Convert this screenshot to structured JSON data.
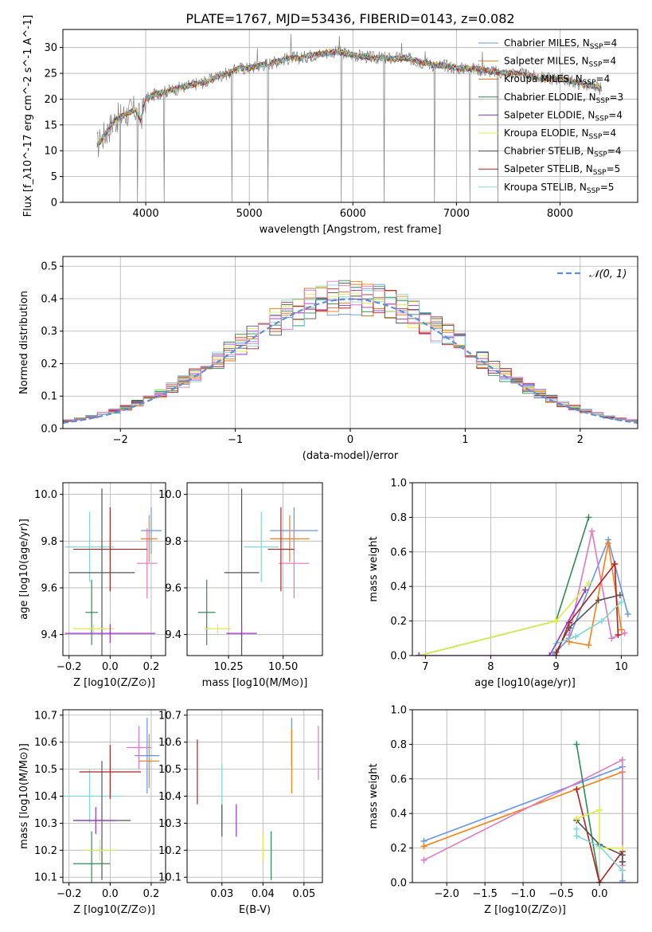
{
  "title": "PLATE=1767, MJD=53436, FIBERID=0143, z=0.082",
  "colors": {
    "chabrier_miles": "#6495ED",
    "salpeter_miles": "#FF7F0E",
    "kroupa_miles": "#D2691E",
    "chabrier_elodie": "#2E8B57",
    "salpeter_elodie": "#9932CC",
    "kroupa_elodie": "#DDEE44",
    "chabrier_stelib": "#555555",
    "salpeter_stelib": "#B22222",
    "kroupa_stelib": "#7FD8D8",
    "data": "#808080",
    "normal": "#5B8FD9",
    "pink": "#E377C2"
  },
  "chart_data": [
    {
      "id": "spectrum",
      "type": "line",
      "title": "PLATE=1767, MJD=53436, FIBERID=0143, z=0.082",
      "xlabel": "wavelength [Angstrom, rest frame]",
      "ylabel": "Flux [f_λ10^-17 erg cm^-2 s^-1 A^-1]",
      "xlim": [
        3200,
        8750
      ],
      "ylim": [
        0,
        33.5
      ],
      "xticks": [
        4000,
        5000,
        6000,
        7000,
        8000
      ],
      "yticks": [
        0,
        5,
        10,
        15,
        20,
        25,
        30
      ],
      "legend_position": "upper right",
      "legend": [
        {
          "name": "Chabrier MILES",
          "nssp": "4",
          "color_key": "chabrier_miles"
        },
        {
          "name": "Salpeter MILES",
          "nssp": "4",
          "color_key": "salpeter_miles"
        },
        {
          "name": "Kroupa MILES",
          "nssp": "4",
          "color_key": "kroupa_miles"
        },
        {
          "name": "Chabrier ELODIE",
          "nssp": "3",
          "color_key": "chabrier_elodie"
        },
        {
          "name": "Salpeter ELODIE",
          "nssp": "4",
          "color_key": "salpeter_elodie"
        },
        {
          "name": "Kroupa ELODIE",
          "nssp": "4",
          "color_key": "kroupa_elodie"
        },
        {
          "name": "Chabrier STELIB",
          "nssp": "4",
          "color_key": "chabrier_stelib"
        },
        {
          "name": "Salpeter STELIB",
          "nssp": "5",
          "color_key": "salpeter_stelib"
        },
        {
          "name": "Kroupa STELIB",
          "nssp": "5",
          "color_key": "kroupa_stelib"
        }
      ],
      "continuum": [
        [
          3530,
          11
        ],
        [
          3600,
          13
        ],
        [
          3700,
          16
        ],
        [
          3800,
          17
        ],
        [
          3900,
          18
        ],
        [
          3950,
          16
        ],
        [
          4000,
          20
        ],
        [
          4100,
          21
        ],
        [
          4200,
          21.5
        ],
        [
          4300,
          22
        ],
        [
          4400,
          22.5
        ],
        [
          4500,
          23
        ],
        [
          4600,
          23.5
        ],
        [
          4700,
          24.5
        ],
        [
          4800,
          25
        ],
        [
          4900,
          26
        ],
        [
          5000,
          26
        ],
        [
          5100,
          26.5
        ],
        [
          5200,
          27
        ],
        [
          5300,
          27.5
        ],
        [
          5400,
          28
        ],
        [
          5500,
          28
        ],
        [
          5600,
          28.5
        ],
        [
          5700,
          28.8
        ],
        [
          5800,
          29.2
        ],
        [
          5900,
          29
        ],
        [
          6000,
          28.5
        ],
        [
          6100,
          28.3
        ],
        [
          6200,
          28
        ],
        [
          6300,
          28
        ],
        [
          6400,
          27.8
        ],
        [
          6500,
          28
        ],
        [
          6600,
          27.5
        ],
        [
          6700,
          27
        ],
        [
          6800,
          26.5
        ],
        [
          6900,
          26.5
        ],
        [
          7000,
          26
        ],
        [
          7100,
          26
        ],
        [
          7200,
          25.8
        ],
        [
          7300,
          25.5
        ],
        [
          7400,
          25.2
        ],
        [
          7500,
          25
        ],
        [
          7600,
          25
        ],
        [
          7700,
          24.5
        ],
        [
          7800,
          24.2
        ],
        [
          7900,
          24
        ],
        [
          8000,
          24
        ],
        [
          8100,
          23.5
        ],
        [
          8200,
          23
        ],
        [
          8300,
          22.5
        ],
        [
          8400,
          22
        ]
      ],
      "spikes_down": [
        3510,
        3750,
        3920,
        4180,
        4830,
        5180,
        5890,
        6300,
        6790,
        7130,
        7400
      ],
      "spikes_up": [
        3560,
        5080,
        5400,
        5870,
        6470,
        6700,
        7250
      ]
    },
    {
      "id": "residuals",
      "type": "bar",
      "xlabel": "(data-model)/error",
      "ylabel": "Normed distribution",
      "xlim": [
        -2.5,
        2.5
      ],
      "ylim": [
        0,
        0.53
      ],
      "xticks": [
        -2,
        -1,
        0,
        1,
        2
      ],
      "yticks": [
        0.0,
        0.1,
        0.2,
        0.3,
        0.4,
        0.5
      ],
      "legend_position": "upper right",
      "legend": [
        {
          "name": "N(0,1)",
          "style": "dashed",
          "color_key": "normal"
        }
      ],
      "bin_width": 0.1
    },
    {
      "id": "age_vs_Z",
      "type": "scatter",
      "xlabel": "Z [log10(Z/Z⊙)]",
      "ylabel": "age  [log10(age/yr)]",
      "xlim": [
        -0.23,
        0.27
      ],
      "ylim": [
        9.31,
        10.05
      ],
      "xticks": [
        -0.2,
        0.0,
        0.2
      ],
      "yticks": [
        9.4,
        9.6,
        9.8,
        10.0
      ],
      "errorbars": [
        {
          "color_key": "chabrier_miles",
          "x": 0.2,
          "xerr": 0.05,
          "y": 9.845,
          "yerr": 0.1
        },
        {
          "color_key": "salpeter_miles",
          "x": 0.19,
          "xerr": 0.04,
          "y": 9.81,
          "yerr": 0.1
        },
        {
          "color_key": "pink",
          "x": 0.18,
          "xerr": 0.05,
          "y": 9.705,
          "yerr": 0.15
        },
        {
          "color_key": "kroupa_stelib",
          "x": -0.1,
          "xerr": 0.12,
          "y": 9.775,
          "yerr": 0.15
        },
        {
          "color_key": "salpeter_stelib",
          "x": 0.0,
          "xerr": 0.18,
          "y": 9.765,
          "yerr": 0.18
        },
        {
          "color_key": "chabrier_stelib",
          "x": -0.04,
          "xerr": 0.16,
          "y": 9.665,
          "yerr": 0.36
        },
        {
          "color_key": "chabrier_elodie",
          "x": -0.09,
          "xerr": 0.03,
          "y": 9.495,
          "yerr": 0.14
        },
        {
          "color_key": "kroupa_elodie",
          "x": -0.08,
          "xerr": 0.1,
          "y": 9.425,
          "yerr": 0.02
        },
        {
          "color_key": "salpeter_elodie",
          "x": 0.0,
          "xerr": 0.22,
          "y": 9.405,
          "yerr": 0.04
        }
      ]
    },
    {
      "id": "age_vs_mass",
      "type": "scatter",
      "xlabel": "mass [log10(M/M⊙)]",
      "ylabel": "",
      "xlim": [
        10.06,
        10.68
      ],
      "ylim": [
        9.31,
        10.05
      ],
      "xticks": [
        10.25,
        10.5
      ],
      "yticks": [
        9.4,
        9.6,
        9.8,
        10.0
      ],
      "errorbars": [
        {
          "color_key": "chabrier_miles",
          "x": 10.55,
          "xerr": 0.11,
          "y": 9.845,
          "yerr": 0.1
        },
        {
          "color_key": "salpeter_miles",
          "x": 10.53,
          "xerr": 0.09,
          "y": 9.81,
          "yerr": 0.1
        },
        {
          "color_key": "pink",
          "x": 10.55,
          "xerr": 0.07,
          "y": 9.705,
          "yerr": 0.15
        },
        {
          "color_key": "kroupa_stelib",
          "x": 10.4,
          "xerr": 0.08,
          "y": 9.775,
          "yerr": 0.15
        },
        {
          "color_key": "salpeter_stelib",
          "x": 10.49,
          "xerr": 0.06,
          "y": 9.765,
          "yerr": 0.18
        },
        {
          "color_key": "chabrier_stelib",
          "x": 10.31,
          "xerr": 0.08,
          "y": 9.665,
          "yerr": 0.36
        },
        {
          "color_key": "chabrier_elodie",
          "x": 10.15,
          "xerr": 0.04,
          "y": 9.495,
          "yerr": 0.14
        },
        {
          "color_key": "kroupa_elodie",
          "x": 10.2,
          "xerr": 0.06,
          "y": 9.425,
          "yerr": 0.02
        },
        {
          "color_key": "salpeter_elodie",
          "x": 10.31,
          "xerr": 0.07,
          "y": 9.405,
          "yerr": 0.04
        }
      ]
    },
    {
      "id": "weight_vs_age",
      "type": "line",
      "xlabel": "age  [log10(age/yr)]",
      "ylabel": "mass weight",
      "xlim": [
        6.8,
        10.25
      ],
      "ylim": [
        0,
        1.0
      ],
      "xticks": [
        7,
        8,
        9,
        10
      ],
      "yticks": [
        0.0,
        0.2,
        0.4,
        0.6,
        0.8,
        1.0
      ],
      "series": [
        {
          "color_key": "chabrier_elodie",
          "points": [
            [
              6.9,
              0.0
            ],
            [
              9.0,
              0.2
            ],
            [
              9.5,
              0.8
            ]
          ]
        },
        {
          "color_key": "chabrier_miles",
          "points": [
            [
              8.95,
              0.0
            ],
            [
              9.2,
              0.1
            ],
            [
              9.8,
              0.67
            ],
            [
              10.1,
              0.24
            ]
          ]
        },
        {
          "color_key": "salpeter_miles",
          "points": [
            [
              9.2,
              0.08
            ],
            [
              9.5,
              0.06
            ],
            [
              9.8,
              0.65
            ],
            [
              10.0,
              0.15
            ]
          ]
        },
        {
          "color_key": "pink",
          "points": [
            [
              9.2,
              0.12
            ],
            [
              9.55,
              0.72
            ],
            [
              9.85,
              0.1
            ],
            [
              10.05,
              0.13
            ]
          ]
        },
        {
          "color_key": "chabrier_stelib",
          "points": [
            [
              9.0,
              0.02
            ],
            [
              9.2,
              0.16
            ],
            [
              9.65,
              0.32
            ],
            [
              9.98,
              0.35
            ]
          ]
        },
        {
          "color_key": "salpeter_stelib",
          "points": [
            [
              9.0,
              0.0
            ],
            [
              9.2,
              0.19
            ],
            [
              9.9,
              0.53
            ],
            [
              9.95,
              0.12
            ]
          ]
        },
        {
          "color_key": "kroupa_stelib",
          "points": [
            [
              9.0,
              0.07
            ],
            [
              9.3,
              0.11
            ],
            [
              9.7,
              0.2
            ],
            [
              10.0,
              0.31
            ]
          ]
        },
        {
          "color_key": "kroupa_elodie",
          "points": [
            [
              6.9,
              0.0
            ],
            [
              9.0,
              0.2
            ],
            [
              9.5,
              0.42
            ]
          ]
        },
        {
          "color_key": "salpeter_elodie",
          "points": [
            [
              6.9,
              0.0
            ],
            [
              8.9,
              0.0
            ],
            [
              9.45,
              0.38
            ]
          ]
        }
      ]
    },
    {
      "id": "mass_vs_Z",
      "type": "scatter",
      "xlabel": "Z [log10(Z/Z⊙)]",
      "ylabel": "mass [log10(M/M⊙)]",
      "xlim": [
        -0.23,
        0.27
      ],
      "ylim": [
        10.08,
        10.72
      ],
      "xticks": [
        -0.2,
        0.0,
        0.2
      ],
      "yticks": [
        10.1,
        10.2,
        10.3,
        10.4,
        10.5,
        10.6,
        10.7
      ],
      "errorbars": [
        {
          "color_key": "chabrier_miles",
          "x": 0.18,
          "xerr": 0.06,
          "y": 10.55,
          "yerr": 0.14
        },
        {
          "color_key": "salpeter_miles",
          "x": 0.19,
          "xerr": 0.05,
          "y": 10.53,
          "yerr": 0.1
        },
        {
          "color_key": "pink",
          "x": 0.14,
          "xerr": 0.06,
          "y": 10.58,
          "yerr": 0.08
        },
        {
          "color_key": "kroupa_stelib",
          "x": -0.1,
          "xerr": 0.15,
          "y": 10.4,
          "yerr": 0.1
        },
        {
          "color_key": "salpeter_stelib",
          "x": 0.0,
          "xerr": 0.15,
          "y": 10.49,
          "yerr": 0.1
        },
        {
          "color_key": "chabrier_stelib",
          "x": -0.04,
          "xerr": 0.14,
          "y": 10.31,
          "yerr": 0.22
        },
        {
          "color_key": "chabrier_elodie",
          "x": -0.09,
          "xerr": 0.09,
          "y": 10.15,
          "yerr": 0.12
        },
        {
          "color_key": "kroupa_elodie",
          "x": -0.05,
          "xerr": 0.08,
          "y": 10.2,
          "yerr": 0.04
        },
        {
          "color_key": "salpeter_elodie",
          "x": -0.07,
          "xerr": 0.1,
          "y": 10.31,
          "yerr": 0.05
        }
      ]
    },
    {
      "id": "mass_vs_ebv",
      "type": "scatter",
      "xlabel": "E(B-V)",
      "ylabel": "",
      "xlim": [
        0.0215,
        0.0545
      ],
      "ylim": [
        10.08,
        10.72
      ],
      "xticks": [
        0.03,
        0.04,
        0.05
      ],
      "yticks": [
        10.1,
        10.2,
        10.3,
        10.4,
        10.5,
        10.6,
        10.7
      ],
      "errorbars": [
        {
          "color_key": "salpeter_stelib",
          "x": 0.024,
          "xerr": 0,
          "y": 10.49,
          "yerr": 0.12
        },
        {
          "color_key": "kroupa_stelib",
          "x": 0.03,
          "xerr": 0,
          "y": 10.4,
          "yerr": 0.12
        },
        {
          "color_key": "chabrier_stelib",
          "x": 0.03,
          "xerr": 0,
          "y": 10.31,
          "yerr": 0.06
        },
        {
          "color_key": "salpeter_elodie",
          "x": 0.0335,
          "xerr": 0,
          "y": 10.31,
          "yerr": 0.06
        },
        {
          "color_key": "kroupa_elodie",
          "x": 0.04,
          "xerr": 0,
          "y": 10.21,
          "yerr": 0.05
        },
        {
          "color_key": "chabrier_elodie",
          "x": 0.042,
          "xerr": 0,
          "y": 10.18,
          "yerr": 0.09
        },
        {
          "color_key": "chabrier_miles",
          "x": 0.047,
          "xerr": 0,
          "y": 10.6,
          "yerr": 0.09
        },
        {
          "color_key": "salpeter_miles",
          "x": 0.047,
          "xerr": 0,
          "y": 10.53,
          "yerr": 0.12
        },
        {
          "color_key": "pink",
          "x": 0.0535,
          "xerr": 0,
          "y": 10.56,
          "yerr": 0.1
        }
      ]
    },
    {
      "id": "weight_vs_Z",
      "type": "line",
      "xlabel": "Z [log10(Z/Z⊙)]",
      "ylabel": "mass weight",
      "xlim": [
        -2.45,
        0.5
      ],
      "ylim": [
        0,
        1.0
      ],
      "xticks": [
        -2.0,
        -1.5,
        -1.0,
        -0.5,
        0.0
      ],
      "yticks": [
        0.0,
        0.2,
        0.4,
        0.6,
        0.8,
        1.0
      ],
      "series": [
        {
          "color_key": "chabrier_miles",
          "points": [
            [
              -2.3,
              0.24
            ],
            [
              0.3,
              0.67
            ],
            [
              0.3,
              0.01
            ]
          ]
        },
        {
          "color_key": "salpeter_miles",
          "points": [
            [
              -2.3,
              0.21
            ],
            [
              0.3,
              0.64
            ],
            [
              0.3,
              0.07
            ]
          ]
        },
        {
          "color_key": "pink",
          "points": [
            [
              -2.3,
              0.13
            ],
            [
              0.3,
              0.71
            ],
            [
              0.3,
              0.1
            ]
          ]
        },
        {
          "color_key": "chabrier_elodie",
          "points": [
            [
              -0.3,
              0.8
            ],
            [
              0.0,
              0.0
            ]
          ]
        },
        {
          "color_key": "salpeter_stelib",
          "points": [
            [
              -0.3,
              0.54
            ],
            [
              0.0,
              0.0
            ],
            [
              0.3,
              0.18
            ],
            [
              0.3,
              0.12
            ]
          ]
        },
        {
          "color_key": "chabrier_stelib",
          "points": [
            [
              -0.3,
              0.36
            ],
            [
              0.0,
              0.22
            ],
            [
              0.3,
              0.16
            ],
            [
              0.3,
              0.12
            ]
          ]
        },
        {
          "color_key": "kroupa_elodie",
          "points": [
            [
              -0.3,
              0.37
            ],
            [
              0.0,
              0.42
            ],
            [
              0.0,
              0.2
            ],
            [
              0.3,
              0.2
            ]
          ]
        },
        {
          "color_key": "kroupa_stelib",
          "points": [
            [
              -0.3,
              0.31
            ],
            [
              -0.3,
              0.27
            ],
            [
              0.0,
              0.21
            ],
            [
              0.3,
              0.07
            ]
          ]
        }
      ]
    }
  ]
}
